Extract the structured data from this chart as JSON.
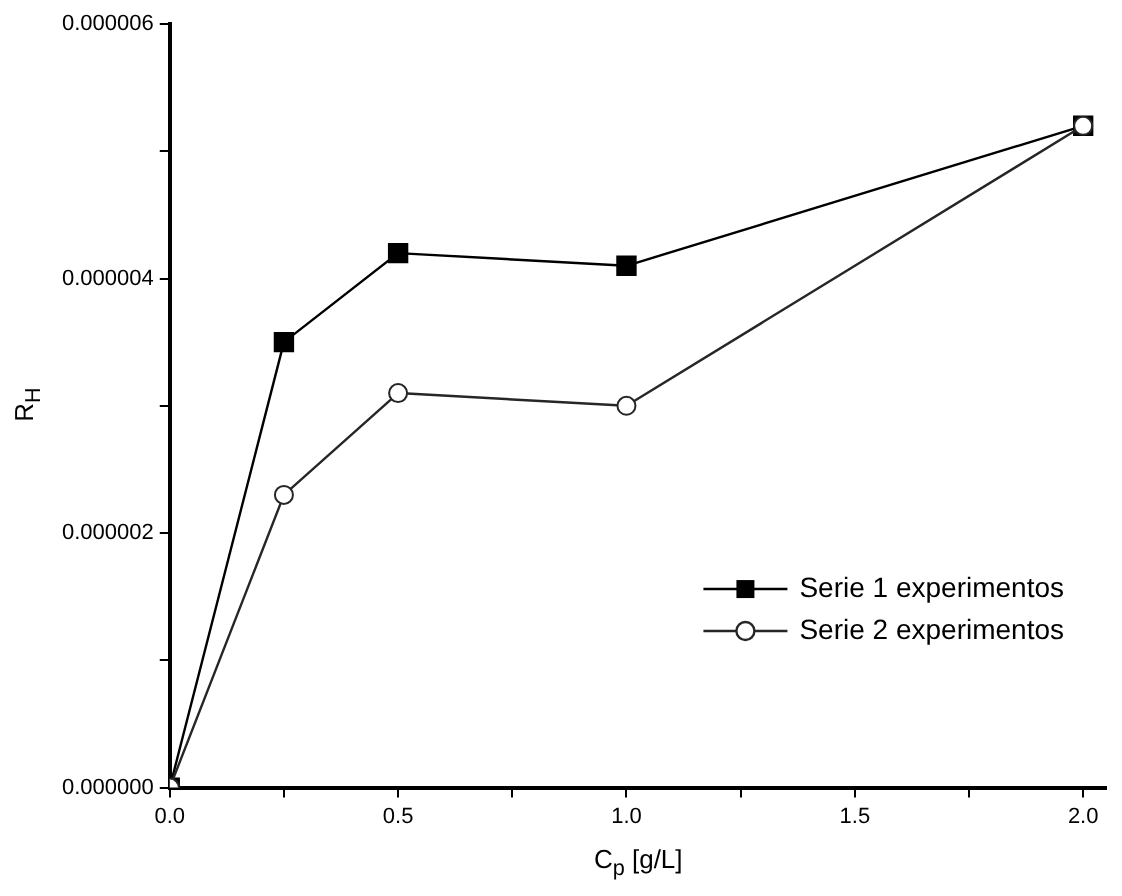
{
  "chart_data": {
    "type": "line",
    "xlabel": "C$_{p}$ [g/L]",
    "ylabel": "R$_{H}$",
    "x": [
      0,
      0.25,
      0.5,
      1.0,
      2.0
    ],
    "series": [
      {
        "name": "Serie 1 experimentos",
        "color": "#000000",
        "marker": "square",
        "values": [
          0,
          3.5e-06,
          4.2e-06,
          4.1e-06,
          5.2e-06
        ]
      },
      {
        "name": "Serie 2 experimentos",
        "color": "#262626",
        "marker": "circle",
        "values": [
          0,
          2.3e-06,
          3.1e-06,
          3e-06,
          5.2e-06
        ]
      }
    ],
    "xlim": [
      0,
      2.05
    ],
    "xticks": [
      {
        "value": 0,
        "label": "0.0"
      },
      {
        "value": 0.25,
        "label": null
      },
      {
        "value": 0.5,
        "label": "0.5"
      },
      {
        "value": 0.75,
        "label": null
      },
      {
        "value": 1,
        "label": "1.0"
      },
      {
        "value": 1.25,
        "label": null
      },
      {
        "value": 1.5,
        "label": "1.5"
      },
      {
        "value": 1.75,
        "label": null
      },
      {
        "value": 2,
        "label": "2.0"
      }
    ],
    "ylim": [
      0,
      6e-06
    ],
    "yticks": [
      {
        "value": 0,
        "label": "0.000000"
      },
      {
        "value": 1e-06,
        "label": null
      },
      {
        "value": 2e-06,
        "label": "0.000002"
      },
      {
        "value": 3e-06,
        "label": null
      },
      {
        "value": 4e-06,
        "label": "0.000004"
      },
      {
        "value": 5e-06,
        "label": null
      },
      {
        "value": 6e-06,
        "label": "0.000006"
      }
    ],
    "grid": false,
    "legend": "right",
    "line_style": "solid"
  }
}
